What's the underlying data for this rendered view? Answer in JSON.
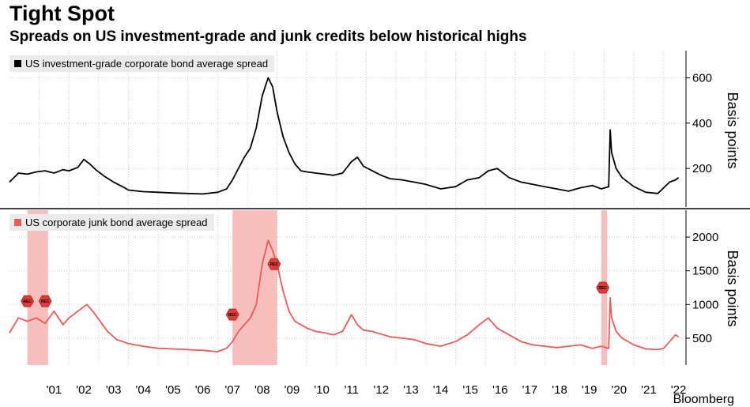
{
  "title": "Tight Spot",
  "subtitle": "Spreads on US investment-grade and junk credits below historical highs",
  "footer": "Bloomberg",
  "colors": {
    "ig_line": "#000000",
    "junk_line": "#ee5a57",
    "recession_band": "#f5a8a6",
    "grid": "#cccccc",
    "divider": "#444444"
  },
  "chart_data": [
    {
      "type": "line",
      "legend": "US investment-grade corporate bond average spread",
      "ylabel": "Basis points",
      "yticks": [
        200,
        400,
        600
      ],
      "ylim": [
        30,
        720
      ],
      "xlim": [
        2000.0,
        2022.75
      ],
      "x": [
        2000.0,
        2000.3,
        2000.6,
        2000.9,
        2001.2,
        2001.5,
        2001.8,
        2002.0,
        2002.3,
        2002.5,
        2002.7,
        2002.9,
        2003.2,
        2003.5,
        2003.8,
        2004.0,
        2004.5,
        2005.0,
        2005.5,
        2006.0,
        2006.5,
        2007.0,
        2007.3,
        2007.5,
        2007.7,
        2007.9,
        2008.1,
        2008.3,
        2008.5,
        2008.7,
        2008.85,
        2009.0,
        2009.2,
        2009.4,
        2009.6,
        2009.8,
        2010.0,
        2010.3,
        2010.6,
        2010.9,
        2011.2,
        2011.5,
        2011.7,
        2011.9,
        2012.2,
        2012.5,
        2012.8,
        2013.2,
        2013.6,
        2014.0,
        2014.5,
        2015.0,
        2015.4,
        2015.8,
        2016.1,
        2016.4,
        2016.8,
        2017.2,
        2017.6,
        2018.0,
        2018.4,
        2018.8,
        2019.2,
        2019.6,
        2019.9,
        2020.15,
        2020.2,
        2020.25,
        2020.4,
        2020.6,
        2021.0,
        2021.4,
        2021.8,
        2022.0,
        2022.2,
        2022.4,
        2022.5
      ],
      "values": [
        140,
        180,
        175,
        185,
        190,
        180,
        195,
        190,
        205,
        240,
        220,
        195,
        165,
        140,
        120,
        105,
        98,
        95,
        92,
        90,
        88,
        95,
        110,
        150,
        200,
        250,
        290,
        380,
        520,
        600,
        560,
        450,
        340,
        270,
        220,
        190,
        185,
        180,
        175,
        170,
        180,
        230,
        250,
        210,
        190,
        170,
        155,
        150,
        140,
        130,
        110,
        120,
        150,
        160,
        190,
        200,
        160,
        140,
        130,
        120,
        110,
        100,
        115,
        125,
        110,
        120,
        370,
        270,
        200,
        160,
        120,
        95,
        90,
        115,
        140,
        150,
        160
      ]
    },
    {
      "type": "line",
      "legend": "US corporate junk bond average spread",
      "ylabel": "Basis points",
      "yticks": [
        500,
        1000,
        1500,
        2000
      ],
      "ylim": [
        100,
        2400
      ],
      "xlim": [
        2000.0,
        2022.75
      ],
      "recessions": [
        {
          "start": 2000.6,
          "end": 2001.3,
          "label": "REC"
        },
        {
          "start": 2007.5,
          "end": 2009.0,
          "label": "REC"
        },
        {
          "start": 2019.9,
          "end": 2020.1,
          "label": "REC"
        }
      ],
      "x": [
        2000.0,
        2000.3,
        2000.6,
        2000.9,
        2001.2,
        2001.5,
        2001.8,
        2002.0,
        2002.3,
        2002.6,
        2002.8,
        2003.0,
        2003.3,
        2003.6,
        2004.0,
        2004.5,
        2005.0,
        2005.5,
        2006.0,
        2006.5,
        2007.0,
        2007.3,
        2007.5,
        2007.7,
        2007.9,
        2008.1,
        2008.3,
        2008.5,
        2008.7,
        2008.85,
        2009.0,
        2009.2,
        2009.4,
        2009.6,
        2009.8,
        2010.0,
        2010.3,
        2010.6,
        2010.9,
        2011.2,
        2011.5,
        2011.7,
        2011.9,
        2012.2,
        2012.5,
        2012.8,
        2013.2,
        2013.6,
        2014.0,
        2014.5,
        2015.0,
        2015.4,
        2015.8,
        2016.1,
        2016.4,
        2016.8,
        2017.2,
        2017.6,
        2018.0,
        2018.4,
        2018.8,
        2019.2,
        2019.6,
        2019.9,
        2020.15,
        2020.2,
        2020.25,
        2020.4,
        2020.6,
        2021.0,
        2021.4,
        2021.8,
        2022.0,
        2022.2,
        2022.4,
        2022.5
      ],
      "values": [
        580,
        800,
        750,
        800,
        720,
        900,
        700,
        800,
        900,
        1000,
        900,
        780,
        600,
        480,
        420,
        380,
        350,
        340,
        330,
        320,
        300,
        350,
        450,
        600,
        700,
        800,
        1000,
        1600,
        1950,
        1800,
        1600,
        1200,
        900,
        750,
        700,
        650,
        600,
        580,
        550,
        600,
        850,
        700,
        620,
        600,
        560,
        520,
        500,
        480,
        420,
        380,
        450,
        550,
        700,
        800,
        650,
        550,
        450,
        400,
        380,
        360,
        380,
        400,
        350,
        380,
        350,
        1100,
        800,
        600,
        500,
        400,
        340,
        330,
        350,
        450,
        550,
        520
      ]
    }
  ],
  "x_tick_labels": [
    "'01",
    "'02",
    "'03",
    "'04",
    "'05",
    "'06",
    "'07",
    "'08",
    "'09",
    "'10",
    "'11",
    "'12",
    "'13",
    "'14",
    "'15",
    "'16",
    "'17",
    "'18",
    "'19",
    "'20",
    "'21",
    "'22"
  ]
}
